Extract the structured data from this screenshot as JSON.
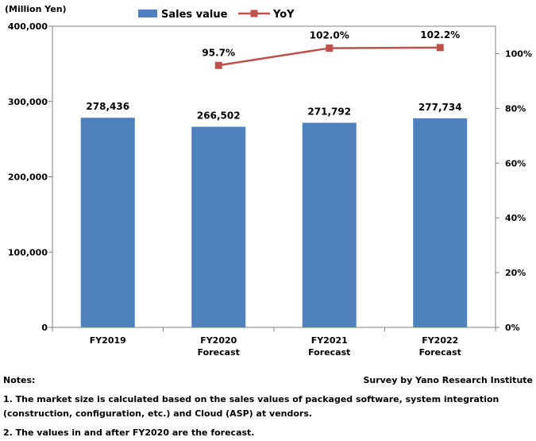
{
  "chart_data": {
    "type": "bar",
    "y_unit_label": "(Million Yen)",
    "categories": [
      [
        "FY2019"
      ],
      [
        "FY2020",
        "Forecast"
      ],
      [
        "FY2021",
        "Forecast"
      ],
      [
        "FY2022",
        "Forecast"
      ]
    ],
    "series": [
      {
        "name": "Sales value",
        "type": "bar",
        "axis": "left",
        "color": "#4f81bd",
        "values": [
          278436,
          266502,
          271792,
          277734
        ],
        "value_labels": [
          "278,436",
          "266,502",
          "271,792",
          "277,734"
        ]
      },
      {
        "name": "YoY",
        "type": "line",
        "axis": "right",
        "color": "#c0504d",
        "values": [
          null,
          95.7,
          102.0,
          102.2
        ],
        "value_labels": [
          null,
          "95.7%",
          "102.0%",
          "102.2%"
        ]
      }
    ],
    "left_axis": {
      "ylim": [
        0,
        400000
      ],
      "ticks": [
        0,
        100000,
        200000,
        300000,
        400000
      ],
      "tick_labels": [
        "0",
        "100,000",
        "200,000",
        "300,000",
        "400,000"
      ]
    },
    "right_axis": {
      "ylim": [
        0,
        110
      ],
      "ticks": [
        0,
        20,
        40,
        60,
        80,
        100
      ],
      "tick_labels": [
        "0%",
        "20%",
        "40%",
        "60%",
        "80%",
        "100%"
      ]
    },
    "legend_position": "top",
    "grid": false
  },
  "notes": {
    "heading": "Notes:",
    "source": "Survey by Yano Research Institute",
    "line1a": "1. The market size is calculated based on the sales values of packaged software, system integration",
    "line1b": "(construction, configuration, etc.) and Cloud (ASP) at vendors.",
    "line2": "2. The values in and after FY2020 are the forecast."
  }
}
